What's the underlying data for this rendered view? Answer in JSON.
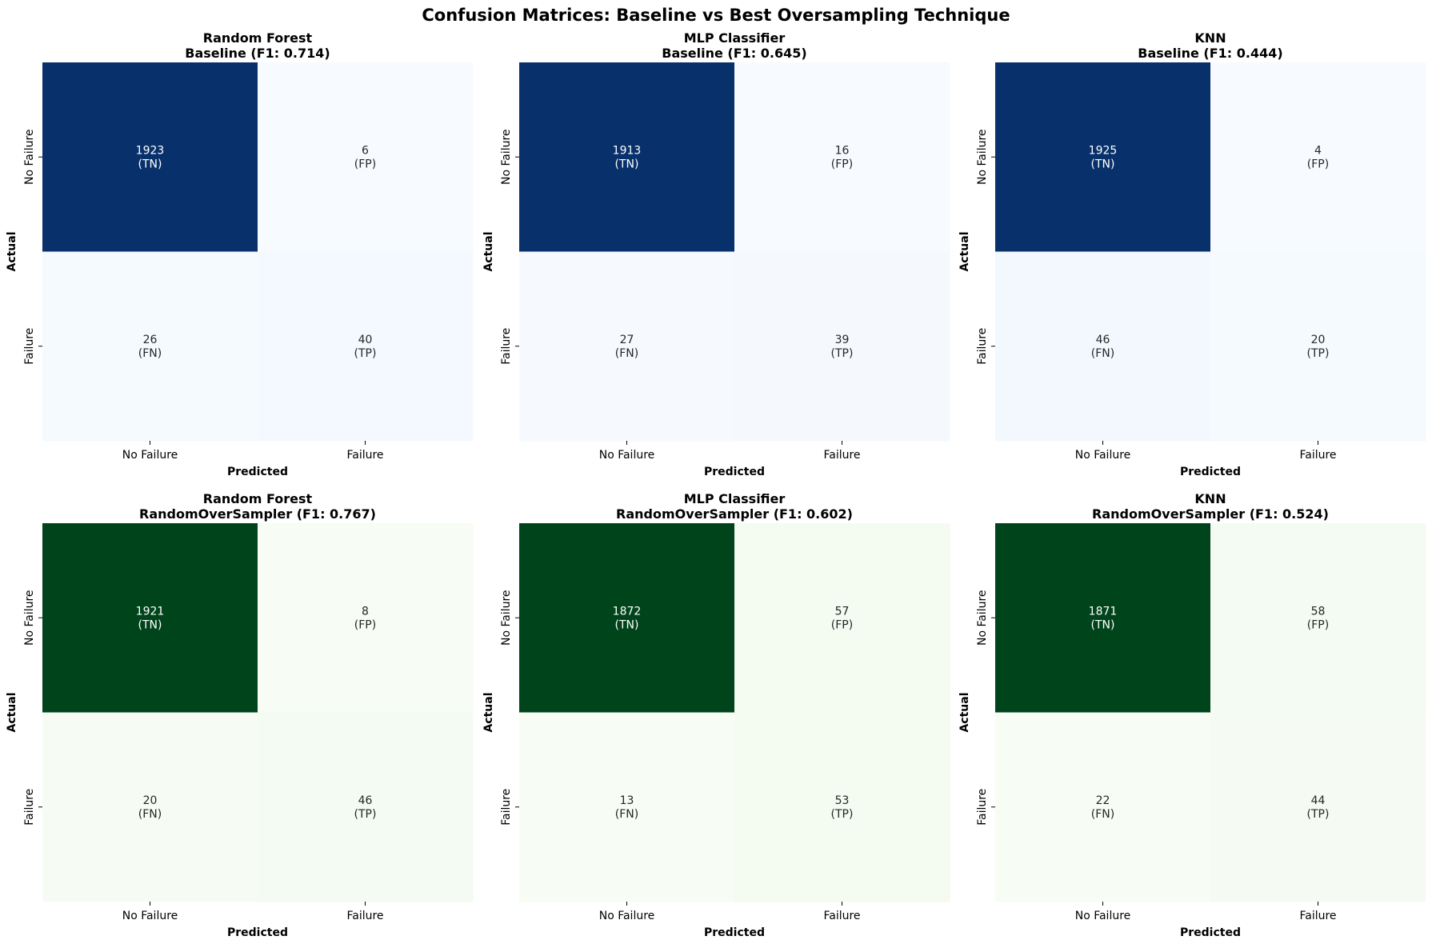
{
  "figure": {
    "title": "Confusion Matrices: Baseline vs Best Oversampling Technique"
  },
  "colors": {
    "blues": [
      "#f7fbff",
      "#deebf7",
      "#c6dbef",
      "#9ecae1",
      "#6baed6",
      "#4292c6",
      "#2171b5",
      "#08519c",
      "#08306b"
    ],
    "greens": [
      "#f7fcf5",
      "#e5f5e0",
      "#c7e9c0",
      "#a1d99b",
      "#74c476",
      "#41ab5d",
      "#238b45",
      "#006d2c",
      "#00441b"
    ],
    "text_dark": "#262626",
    "text_light": "#ffffff"
  },
  "chart_data": [
    {
      "type": "heatmap",
      "model": "Random Forest",
      "subtitle": "Baseline (F1: 0.714)",
      "colormap": "blues",
      "xlabel": "Predicted",
      "ylabel": "Actual",
      "x_categories": [
        "No Failure",
        "Failure"
      ],
      "y_categories": [
        "No Failure",
        "Failure"
      ],
      "values": [
        [
          1923,
          6
        ],
        [
          26,
          40
        ]
      ],
      "cell_labels": [
        [
          "(TN)",
          "(FP)"
        ],
        [
          "(FN)",
          "(TP)"
        ]
      ]
    },
    {
      "type": "heatmap",
      "model": "MLP Classifier",
      "subtitle": "Baseline (F1: 0.645)",
      "colormap": "blues",
      "xlabel": "Predicted",
      "ylabel": "Actual",
      "x_categories": [
        "No Failure",
        "Failure"
      ],
      "y_categories": [
        "No Failure",
        "Failure"
      ],
      "values": [
        [
          1913,
          16
        ],
        [
          27,
          39
        ]
      ],
      "cell_labels": [
        [
          "(TN)",
          "(FP)"
        ],
        [
          "(FN)",
          "(TP)"
        ]
      ]
    },
    {
      "type": "heatmap",
      "model": "KNN",
      "subtitle": "Baseline (F1: 0.444)",
      "colormap": "blues",
      "xlabel": "Predicted",
      "ylabel": "Actual",
      "x_categories": [
        "No Failure",
        "Failure"
      ],
      "y_categories": [
        "No Failure",
        "Failure"
      ],
      "values": [
        [
          1925,
          4
        ],
        [
          46,
          20
        ]
      ],
      "cell_labels": [
        [
          "(TN)",
          "(FP)"
        ],
        [
          "(FN)",
          "(TP)"
        ]
      ]
    },
    {
      "type": "heatmap",
      "model": "Random Forest",
      "subtitle": "RandomOverSampler (F1: 0.767)",
      "colormap": "greens",
      "xlabel": "Predicted",
      "ylabel": "Actual",
      "x_categories": [
        "No Failure",
        "Failure"
      ],
      "y_categories": [
        "No Failure",
        "Failure"
      ],
      "values": [
        [
          1921,
          8
        ],
        [
          20,
          46
        ]
      ],
      "cell_labels": [
        [
          "(TN)",
          "(FP)"
        ],
        [
          "(FN)",
          "(TP)"
        ]
      ]
    },
    {
      "type": "heatmap",
      "model": "MLP Classifier",
      "subtitle": "RandomOverSampler (F1: 0.602)",
      "colormap": "greens",
      "xlabel": "Predicted",
      "ylabel": "Actual",
      "x_categories": [
        "No Failure",
        "Failure"
      ],
      "y_categories": [
        "No Failure",
        "Failure"
      ],
      "values": [
        [
          1872,
          57
        ],
        [
          13,
          53
        ]
      ],
      "cell_labels": [
        [
          "(TN)",
          "(FP)"
        ],
        [
          "(FN)",
          "(TP)"
        ]
      ]
    },
    {
      "type": "heatmap",
      "model": "KNN",
      "subtitle": "RandomOverSampler (F1: 0.524)",
      "colormap": "greens",
      "xlabel": "Predicted",
      "ylabel": "Actual",
      "x_categories": [
        "No Failure",
        "Failure"
      ],
      "y_categories": [
        "No Failure",
        "Failure"
      ],
      "values": [
        [
          1871,
          58
        ],
        [
          22,
          44
        ]
      ],
      "cell_labels": [
        [
          "(TN)",
          "(FP)"
        ],
        [
          "(FN)",
          "(TP)"
        ]
      ]
    }
  ]
}
